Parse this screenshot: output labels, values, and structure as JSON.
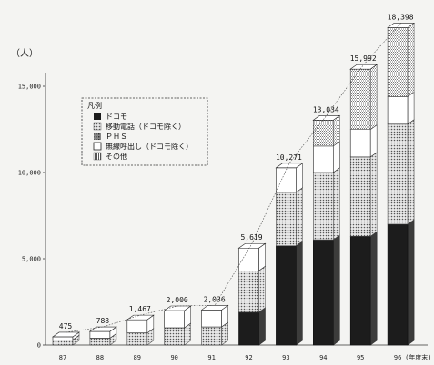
{
  "chart_data": {
    "type": "bar",
    "stacked": true,
    "three_d": true,
    "unit_label": "（人）",
    "categories": [
      "87",
      "88",
      "89",
      "90",
      "91",
      "92",
      "93",
      "94",
      "95",
      "96"
    ],
    "last_category_suffix": "(年度末)",
    "ylim": [
      0,
      20000
    ],
    "yticks": [
      0,
      5000,
      10000,
      15000
    ],
    "ytick_labels": [
      "0",
      "5,000",
      "10,000",
      "15,000"
    ],
    "totals": [
      475,
      788,
      1467,
      2000,
      2036,
      5619,
      10271,
      13034,
      15992,
      18398
    ],
    "total_labels": [
      "475",
      "788",
      "1,467",
      "2,000",
      "2,036",
      "5,619",
      "10,271",
      "13,034",
      "15,992",
      "18,398"
    ],
    "series": [
      {
        "name": "ドコモ",
        "values": [
          0,
          0,
          0,
          0,
          0,
          1900,
          5750,
          6100,
          6300,
          7000
        ]
      },
      {
        "name": "移動電話（ドコモ除く）",
        "values": [
          300,
          400,
          700,
          1000,
          1050,
          2400,
          3100,
          3900,
          4600,
          5800
        ]
      },
      {
        "name": "ＰＨＳ",
        "values": [
          0,
          0,
          0,
          0,
          0,
          0,
          0,
          0,
          0,
          0
        ]
      },
      {
        "name": "無線呼出し（ドコモ除く）",
        "values": [
          175,
          388,
          767,
          1000,
          986,
          1319,
          1421,
          1534,
          1592,
          1598
        ]
      },
      {
        "name": "その他",
        "values": [
          0,
          0,
          0,
          0,
          0,
          0,
          0,
          1500,
          3500,
          4000
        ]
      }
    ],
    "legend": {
      "title": "凡例",
      "placement": "top-left"
    },
    "colors": {
      "docomo": "#1c1c1c",
      "mobile": "#9a9a9a",
      "phs": "#6e6e6e",
      "paging": "#ffffff",
      "other": "#cfcfcf"
    }
  }
}
